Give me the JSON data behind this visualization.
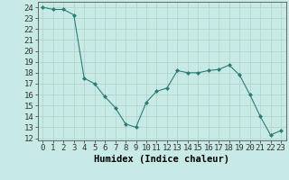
{
  "x": [
    0,
    1,
    2,
    3,
    4,
    5,
    6,
    7,
    8,
    9,
    10,
    11,
    12,
    13,
    14,
    15,
    16,
    17,
    18,
    19,
    20,
    21,
    22,
    23
  ],
  "y": [
    24.0,
    23.8,
    23.8,
    23.3,
    17.5,
    17.0,
    15.8,
    14.8,
    13.3,
    13.0,
    15.3,
    16.3,
    16.6,
    18.2,
    18.0,
    18.0,
    18.2,
    18.3,
    18.7,
    17.8,
    16.0,
    14.0,
    12.3,
    12.7
  ],
  "line_color": "#2d7d6e",
  "marker": "D",
  "marker_size": 2,
  "bg_color": "#c8eae6",
  "grid_color": "#b0d0cc",
  "xlabel": "Humidex (Indice chaleur)",
  "xlim": [
    -0.5,
    23.5
  ],
  "ylim": [
    11.8,
    24.5
  ],
  "yticks": [
    12,
    13,
    14,
    15,
    16,
    17,
    18,
    19,
    20,
    21,
    22,
    23,
    24
  ],
  "xticks": [
    0,
    1,
    2,
    3,
    4,
    5,
    6,
    7,
    8,
    9,
    10,
    11,
    12,
    13,
    14,
    15,
    16,
    17,
    18,
    19,
    20,
    21,
    22,
    23
  ],
  "tick_fontsize": 6.5,
  "xlabel_fontsize": 7.5
}
